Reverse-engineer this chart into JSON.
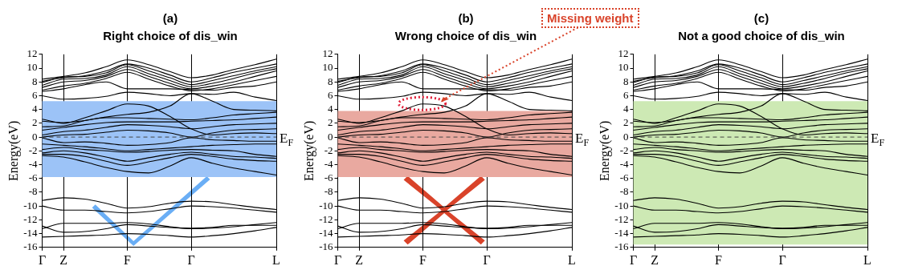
{
  "chart_data": [
    {
      "type": "line",
      "title": "(a)",
      "subtitle": "Right choice of dis_win",
      "ylabel": "Energy(eV)",
      "legend": false,
      "grid": "x",
      "marker": "none",
      "categories": [
        "Γ",
        "Z",
        null,
        null,
        "F",
        null,
        null,
        "Γ",
        null,
        null,
        null,
        "L"
      ],
      "ylim": [
        -16,
        12
      ],
      "yticks": [
        -16,
        -14,
        -12,
        -10,
        -8,
        -6,
        -4,
        -2,
        0,
        2,
        4,
        6,
        8,
        10,
        12
      ],
      "ref_lines": [
        {
          "axis": "y",
          "value": 0,
          "label": "E$_{F}$",
          "color": "#444444",
          "line_style": "dashed"
        }
      ],
      "bands": [
        {
          "axis": "y",
          "from": -5.8,
          "to": 5.2,
          "color": "#9cc3f7"
        }
      ],
      "series": [
        {
          "color": "#000000",
          "values": [
            8.4,
            8.8,
            9.3,
            10.2,
            11.2,
            10.5,
            9.5,
            8.6,
            9,
            9.8,
            10.5,
            11.3
          ]
        },
        {
          "color": "#000000",
          "values": [
            8.1,
            8.6,
            8.9,
            9.6,
            10.6,
            10,
            9,
            8,
            8.6,
            9.4,
            10,
            10.6
          ]
        },
        {
          "color": "#000000",
          "values": [
            7.9,
            8.7,
            8.8,
            9.3,
            10.5,
            9.6,
            8.6,
            7.6,
            8.2,
            8.9,
            9.6,
            10.2
          ]
        },
        {
          "color": "#000000",
          "values": [
            7.5,
            8.4,
            8.5,
            9,
            10.2,
            9.2,
            8.2,
            7.3,
            7.8,
            8.5,
            9.3,
            9.9
          ]
        },
        {
          "color": "#000000",
          "values": [
            7.2,
            8,
            8.2,
            8.8,
            9.8,
            8.8,
            7.8,
            7,
            7.4,
            8,
            8.8,
            9.6
          ]
        },
        {
          "color": "#000000",
          "values": [
            6.8,
            7.4,
            7.8,
            8.5,
            9.4,
            8.4,
            7.4,
            6.7,
            7,
            7.6,
            8.2,
            8.8
          ]
        },
        {
          "color": "#000000",
          "values": [
            6.6,
            7,
            7.6,
            8,
            7,
            7,
            7,
            6.9,
            6.8,
            7.2,
            7.4,
            8
          ]
        },
        {
          "color": "#000000",
          "values": [
            6,
            5.5,
            5.6,
            5.9,
            6.5,
            6.3,
            6,
            6.3,
            6.2,
            6.5,
            5.8,
            5.3
          ]
        },
        {
          "color": "#000000",
          "values": [
            2.6,
            2,
            2.8,
            3.8,
            4.8,
            4.5,
            3,
            1.2,
            0.3,
            0.5,
            0.6,
            0.5
          ]
        },
        {
          "color": "#000000",
          "values": [
            2.3,
            2.1,
            2.4,
            2.9,
            3.3,
            3.6,
            4.5,
            6.3,
            5.2,
            4,
            3.9,
            3.8
          ]
        },
        {
          "color": "#000000",
          "values": [
            1.5,
            1.6,
            2.4,
            2.8,
            2.8,
            2.7,
            2.6,
            2.5,
            2.8,
            3.2,
            3.4,
            3.6
          ]
        },
        {
          "color": "#000000",
          "values": [
            1,
            1.4,
            1.8,
            2.1,
            2.2,
            2.2,
            2.2,
            2.3,
            2.4,
            2.5,
            2.7,
            2.9
          ]
        },
        {
          "color": "#000000",
          "values": [
            0.3,
            0.8,
            1,
            1.4,
            1.8,
            1.7,
            1.5,
            1.2,
            1.5,
            1.8,
            1.9,
            2
          ]
        },
        {
          "color": "#000000",
          "values": [
            0,
            0.3,
            0.4,
            0.7,
            1,
            0.9,
            0.6,
            0,
            0.6,
            1,
            1.1,
            1.2
          ]
        },
        {
          "color": "#000000",
          "values": [
            -0.1,
            -0.8,
            -0.7,
            -0.9,
            -1.2,
            -1.1,
            -0.8,
            -0.1,
            -0.4,
            -0.5,
            -0.6,
            -0.6
          ]
        },
        {
          "color": "#000000",
          "values": [
            -1,
            -1.2,
            -1.4,
            -1.7,
            -2,
            -1.8,
            -1.6,
            -1.4,
            -1.2,
            -1.1,
            -1,
            -1
          ]
        },
        {
          "color": "#000000",
          "values": [
            -1.8,
            -1.5,
            -1.8,
            -2,
            -2.2,
            -2.1,
            -1.9,
            -1.8,
            -1.9,
            -2,
            -2.5,
            -2.8
          ]
        },
        {
          "color": "#000000",
          "values": [
            -2.3,
            -2,
            -2.3,
            -2.9,
            -3.5,
            -3,
            -2.5,
            -2.2,
            -2.5,
            -2.8,
            -2.9,
            -3.1
          ]
        },
        {
          "color": "#000000",
          "values": [
            -2.5,
            -2.5,
            -2.8,
            -3.5,
            -4.1,
            -3.6,
            -3,
            -2.5,
            -2.8,
            -3.2,
            -3.4,
            -3.5
          ]
        },
        {
          "color": "#000000",
          "values": [
            -2.7,
            -2.9,
            -3.6,
            -4.4,
            -5,
            -5.2,
            -4.2,
            -3,
            -3.8,
            -4.5,
            -5,
            -5.5
          ]
        },
        {
          "color": "#000000",
          "values": [
            -9.2,
            -8.8,
            -9,
            -9.6,
            -10.3,
            -10.1,
            -9.6,
            -9.3,
            -9.4,
            -9.8,
            -10.2,
            -10.5
          ]
        },
        {
          "color": "#000000",
          "values": [
            -10,
            -10.6,
            -10.6,
            -10.8,
            -11,
            -10.8,
            -10.4,
            -10,
            -10.1,
            -10.3,
            -10.6,
            -10.9
          ]
        },
        {
          "color": "#000000",
          "values": [
            -13.3,
            -12.5,
            -12.5,
            -12.5,
            -12.4,
            -12.6,
            -13,
            -13.3,
            -13.2,
            -13,
            -12.7,
            -12.4
          ]
        },
        {
          "color": "#000000",
          "values": [
            -12.9,
            -13.8,
            -13.7,
            -13.3,
            -12.7,
            -12.9,
            -13.1,
            -13.2,
            -13.1,
            -12.8,
            -12.8,
            -12.8
          ]
        },
        {
          "color": "#000000",
          "values": [
            -14.5,
            -14.4,
            -14.3,
            -14.2,
            -14,
            -14.1,
            -14.3,
            -14.5,
            -14.3,
            -14,
            -13.6,
            -13.1
          ]
        }
      ]
    },
    {
      "type": "line",
      "title": "(b)",
      "subtitle": "Wrong choice of dis_win",
      "ylabel": "Energy(eV)",
      "legend": false,
      "grid": "x",
      "marker": "none",
      "categories": [
        "Γ",
        "Z",
        null,
        null,
        "F",
        null,
        null,
        "Γ",
        null,
        null,
        null,
        "L"
      ],
      "ylim": [
        -16,
        12
      ],
      "yticks": [
        -16,
        -14,
        -12,
        -10,
        -8,
        -6,
        -4,
        -2,
        0,
        2,
        4,
        6,
        8,
        10,
        12
      ],
      "ref_lines": [
        {
          "axis": "y",
          "value": 0,
          "label": "E$_{F}$",
          "color": "#444444",
          "line_style": "dashed"
        }
      ],
      "bands": [
        {
          "axis": "y",
          "from": -5.8,
          "to": 3.8,
          "color": "#e9a9a0"
        }
      ],
      "annotations": [
        "Missing weight"
      ],
      "series": [
        {
          "color": "#000000",
          "values": [
            8.4,
            8.8,
            9.3,
            10.2,
            11.2,
            10.5,
            9.5,
            8.6,
            9,
            9.8,
            10.5,
            11.3
          ]
        },
        {
          "color": "#000000",
          "values": [
            8.1,
            8.6,
            8.9,
            9.6,
            10.6,
            10,
            9,
            8,
            8.6,
            9.4,
            10,
            10.6
          ]
        },
        {
          "color": "#000000",
          "values": [
            7.9,
            8.7,
            8.8,
            9.3,
            10.5,
            9.6,
            8.6,
            7.6,
            8.2,
            8.9,
            9.6,
            10.2
          ]
        },
        {
          "color": "#000000",
          "values": [
            7.5,
            8.4,
            8.5,
            9,
            10.2,
            9.2,
            8.2,
            7.3,
            7.8,
            8.5,
            9.3,
            9.9
          ]
        },
        {
          "color": "#000000",
          "values": [
            7.2,
            8,
            8.2,
            8.8,
            9.8,
            8.8,
            7.8,
            7,
            7.4,
            8,
            8.8,
            9.6
          ]
        },
        {
          "color": "#000000",
          "values": [
            6.8,
            7.4,
            7.8,
            8.5,
            9.4,
            8.4,
            7.4,
            6.7,
            7,
            7.6,
            8.2,
            8.8
          ]
        },
        {
          "color": "#000000",
          "values": [
            6.6,
            7,
            7.6,
            8,
            7,
            7,
            7,
            6.9,
            6.8,
            7.2,
            7.4,
            8
          ]
        },
        {
          "color": "#000000",
          "values": [
            6,
            5.5,
            5.6,
            5.9,
            6.5,
            6.3,
            6,
            6.3,
            6.2,
            6.5,
            5.8,
            5.3
          ]
        },
        {
          "color": "#000000",
          "values": [
            2.6,
            2,
            2.8,
            3.8,
            4.8,
            4.5,
            3,
            1.2,
            0.3,
            0.5,
            0.6,
            0.5
          ]
        },
        {
          "color": "#000000",
          "values": [
            2.3,
            2.1,
            2.4,
            2.9,
            3.3,
            3.6,
            4.5,
            6.3,
            5.2,
            4,
            3.9,
            3.8
          ]
        },
        {
          "color": "#000000",
          "values": [
            1.5,
            1.6,
            2.4,
            2.8,
            2.8,
            2.7,
            2.6,
            2.5,
            2.8,
            3.2,
            3.4,
            3.6
          ]
        },
        {
          "color": "#000000",
          "values": [
            1,
            1.4,
            1.8,
            2.1,
            2.2,
            2.2,
            2.2,
            2.3,
            2.4,
            2.5,
            2.7,
            2.9
          ]
        },
        {
          "color": "#000000",
          "values": [
            0.3,
            0.8,
            1,
            1.4,
            1.8,
            1.7,
            1.5,
            1.2,
            1.5,
            1.8,
            1.9,
            2
          ]
        },
        {
          "color": "#000000",
          "values": [
            0,
            0.3,
            0.4,
            0.7,
            1,
            0.9,
            0.6,
            0,
            0.6,
            1,
            1.1,
            1.2
          ]
        },
        {
          "color": "#000000",
          "values": [
            -0.1,
            -0.8,
            -0.7,
            -0.9,
            -1.2,
            -1.1,
            -0.8,
            -0.1,
            -0.4,
            -0.5,
            -0.6,
            -0.6
          ]
        },
        {
          "color": "#000000",
          "values": [
            -1,
            -1.2,
            -1.4,
            -1.7,
            -2,
            -1.8,
            -1.6,
            -1.4,
            -1.2,
            -1.1,
            -1,
            -1
          ]
        },
        {
          "color": "#000000",
          "values": [
            -1.8,
            -1.5,
            -1.8,
            -2,
            -2.2,
            -2.1,
            -1.9,
            -1.8,
            -1.9,
            -2,
            -2.5,
            -2.8
          ]
        },
        {
          "color": "#000000",
          "values": [
            -2.3,
            -2,
            -2.3,
            -2.9,
            -3.5,
            -3,
            -2.5,
            -2.2,
            -2.5,
            -2.8,
            -2.9,
            -3.1
          ]
        },
        {
          "color": "#000000",
          "values": [
            -2.5,
            -2.5,
            -2.8,
            -3.5,
            -4.1,
            -3.6,
            -3,
            -2.5,
            -2.8,
            -3.2,
            -3.4,
            -3.5
          ]
        },
        {
          "color": "#000000",
          "values": [
            -2.7,
            -2.9,
            -3.6,
            -4.4,
            -5,
            -5.2,
            -4.2,
            -3,
            -3.8,
            -4.5,
            -5,
            -5.5
          ]
        },
        {
          "color": "#000000",
          "values": [
            -9.2,
            -8.8,
            -9,
            -9.6,
            -10.3,
            -10.1,
            -9.6,
            -9.3,
            -9.4,
            -9.8,
            -10.2,
            -10.5
          ]
        },
        {
          "color": "#000000",
          "values": [
            -10,
            -10.6,
            -10.6,
            -10.8,
            -11,
            -10.8,
            -10.4,
            -10,
            -10.1,
            -10.3,
            -10.6,
            -10.9
          ]
        },
        {
          "color": "#000000",
          "values": [
            -13.3,
            -12.5,
            -12.5,
            -12.5,
            -12.4,
            -12.6,
            -13,
            -13.3,
            -13.2,
            -13,
            -12.7,
            -12.4
          ]
        },
        {
          "color": "#000000",
          "values": [
            -12.9,
            -13.8,
            -13.7,
            -13.3,
            -12.7,
            -12.9,
            -13.1,
            -13.2,
            -13.1,
            -12.8,
            -12.8,
            -12.8
          ]
        },
        {
          "color": "#000000",
          "values": [
            -14.5,
            -14.4,
            -14.3,
            -14.2,
            -14,
            -14.1,
            -14.3,
            -14.5,
            -14.3,
            -14,
            -13.6,
            -13.1
          ]
        }
      ]
    },
    {
      "type": "line",
      "title": "(c)",
      "subtitle": "Not a good choice of dis_win",
      "ylabel": "Energy(eV)",
      "legend": false,
      "grid": "x",
      "marker": "none",
      "categories": [
        "Γ",
        "Z",
        null,
        null,
        "F",
        null,
        null,
        "Γ",
        null,
        null,
        null,
        "L"
      ],
      "ylim": [
        -16,
        12
      ],
      "yticks": [
        -16,
        -14,
        -12,
        -10,
        -8,
        -6,
        -4,
        -2,
        0,
        2,
        4,
        6,
        8,
        10,
        12
      ],
      "ref_lines": [
        {
          "axis": "y",
          "value": 0,
          "label": "E$_{F}$",
          "color": "#444444",
          "line_style": "dashed"
        }
      ],
      "bands": [
        {
          "axis": "y",
          "from": -15.6,
          "to": 5.2,
          "color": "#cde9b4"
        }
      ],
      "series": [
        {
          "color": "#000000",
          "values": [
            8.4,
            8.8,
            9.3,
            10.2,
            11.2,
            10.5,
            9.5,
            8.6,
            9,
            9.8,
            10.5,
            11.3
          ]
        },
        {
          "color": "#000000",
          "values": [
            8.1,
            8.6,
            8.9,
            9.6,
            10.6,
            10,
            9,
            8,
            8.6,
            9.4,
            10,
            10.6
          ]
        },
        {
          "color": "#000000",
          "values": [
            7.9,
            8.7,
            8.8,
            9.3,
            10.5,
            9.6,
            8.6,
            7.6,
            8.2,
            8.9,
            9.6,
            10.2
          ]
        },
        {
          "color": "#000000",
          "values": [
            7.5,
            8.4,
            8.5,
            9,
            10.2,
            9.2,
            8.2,
            7.3,
            7.8,
            8.5,
            9.3,
            9.9
          ]
        },
        {
          "color": "#000000",
          "values": [
            7.2,
            8,
            8.2,
            8.8,
            9.8,
            8.8,
            7.8,
            7,
            7.4,
            8,
            8.8,
            9.6
          ]
        },
        {
          "color": "#000000",
          "values": [
            6.8,
            7.4,
            7.8,
            8.5,
            9.4,
            8.4,
            7.4,
            6.7,
            7,
            7.6,
            8.2,
            8.8
          ]
        },
        {
          "color": "#000000",
          "values": [
            6.6,
            7,
            7.6,
            8,
            7,
            7,
            7,
            6.9,
            6.8,
            7.2,
            7.4,
            8
          ]
        },
        {
          "color": "#000000",
          "values": [
            6,
            5.5,
            5.6,
            5.9,
            6.5,
            6.3,
            6,
            6.3,
            6.2,
            6.5,
            5.8,
            5.3
          ]
        },
        {
          "color": "#000000",
          "values": [
            2.6,
            2,
            2.8,
            3.8,
            4.8,
            4.5,
            3,
            1.2,
            0.3,
            0.5,
            0.6,
            0.5
          ]
        },
        {
          "color": "#000000",
          "values": [
            2.3,
            2.1,
            2.4,
            2.9,
            3.3,
            3.6,
            4.5,
            6.3,
            5.2,
            4,
            3.9,
            3.8
          ]
        },
        {
          "color": "#000000",
          "values": [
            1.5,
            1.6,
            2.4,
            2.8,
            2.8,
            2.7,
            2.6,
            2.5,
            2.8,
            3.2,
            3.4,
            3.6
          ]
        },
        {
          "color": "#000000",
          "values": [
            1,
            1.4,
            1.8,
            2.1,
            2.2,
            2.2,
            2.2,
            2.3,
            2.4,
            2.5,
            2.7,
            2.9
          ]
        },
        {
          "color": "#000000",
          "values": [
            0.3,
            0.8,
            1,
            1.4,
            1.8,
            1.7,
            1.5,
            1.2,
            1.5,
            1.8,
            1.9,
            2
          ]
        },
        {
          "color": "#000000",
          "values": [
            0,
            0.3,
            0.4,
            0.7,
            1,
            0.9,
            0.6,
            0,
            0.6,
            1,
            1.1,
            1.2
          ]
        },
        {
          "color": "#000000",
          "values": [
            -0.1,
            -0.8,
            -0.7,
            -0.9,
            -1.2,
            -1.1,
            -0.8,
            -0.1,
            -0.4,
            -0.5,
            -0.6,
            -0.6
          ]
        },
        {
          "color": "#000000",
          "values": [
            -1,
            -1.2,
            -1.4,
            -1.7,
            -2,
            -1.8,
            -1.6,
            -1.4,
            -1.2,
            -1.1,
            -1,
            -1
          ]
        },
        {
          "color": "#000000",
          "values": [
            -1.8,
            -1.5,
            -1.8,
            -2,
            -2.2,
            -2.1,
            -1.9,
            -1.8,
            -1.9,
            -2,
            -2.5,
            -2.8
          ]
        },
        {
          "color": "#000000",
          "values": [
            -2.3,
            -2,
            -2.3,
            -2.9,
            -3.5,
            -3,
            -2.5,
            -2.2,
            -2.5,
            -2.8,
            -2.9,
            -3.1
          ]
        },
        {
          "color": "#000000",
          "values": [
            -2.5,
            -2.5,
            -2.8,
            -3.5,
            -4.1,
            -3.6,
            -3,
            -2.5,
            -2.8,
            -3.2,
            -3.4,
            -3.5
          ]
        },
        {
          "color": "#000000",
          "values": [
            -2.7,
            -2.9,
            -3.6,
            -4.4,
            -5,
            -5.2,
            -4.2,
            -3,
            -3.8,
            -4.5,
            -5,
            -5.5
          ]
        },
        {
          "color": "#000000",
          "values": [
            -9.2,
            -8.8,
            -9,
            -9.6,
            -10.3,
            -10.1,
            -9.6,
            -9.3,
            -9.4,
            -9.8,
            -10.2,
            -10.5
          ]
        },
        {
          "color": "#000000",
          "values": [
            -10,
            -10.6,
            -10.6,
            -10.8,
            -11,
            -10.8,
            -10.4,
            -10,
            -10.1,
            -10.3,
            -10.6,
            -10.9
          ]
        },
        {
          "color": "#000000",
          "values": [
            -13.3,
            -12.5,
            -12.5,
            -12.5,
            -12.4,
            -12.6,
            -13,
            -13.3,
            -13.2,
            -13,
            -12.7,
            -12.4
          ]
        },
        {
          "color": "#000000",
          "values": [
            -12.9,
            -13.8,
            -13.7,
            -13.3,
            -12.7,
            -12.9,
            -13.1,
            -13.2,
            -13.1,
            -12.8,
            -12.8,
            -12.8
          ]
        },
        {
          "color": "#000000",
          "values": [
            -14.5,
            -14.4,
            -14.3,
            -14.2,
            -14,
            -14.1,
            -14.3,
            -14.5,
            -14.3,
            -14,
            -13.6,
            -13.1
          ]
        }
      ]
    }
  ]
}
